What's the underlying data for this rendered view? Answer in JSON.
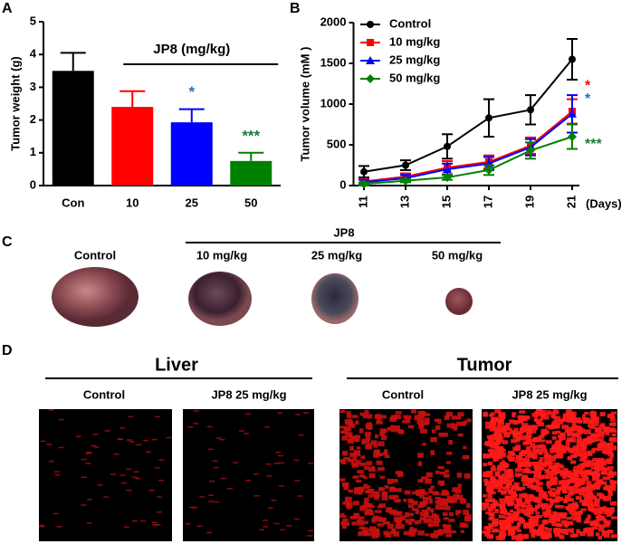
{
  "chart_data": [
    {
      "type": "bar",
      "panel": "A",
      "ylabel": "Tumor weight (g)",
      "categories": [
        "Con",
        "10",
        "25",
        "50"
      ],
      "values": [
        3.5,
        2.4,
        1.93,
        0.75
      ],
      "errors": [
        0.55,
        0.48,
        0.4,
        0.25
      ],
      "colors": [
        "#000000",
        "#ff0000",
        "#0000ff",
        "#008000"
      ],
      "ylim": [
        0,
        5
      ],
      "yticks": [
        0,
        1,
        2,
        3,
        4,
        5
      ],
      "group_label": "JP8 (mg/kg)",
      "significance": [
        {
          "category": "25",
          "label": "*",
          "color": "#2a6ebb"
        },
        {
          "category": "50",
          "label": "***",
          "color": "#1a7a3a"
        }
      ]
    },
    {
      "type": "line",
      "panel": "B",
      "ylabel": "Tumor volume (mM  )",
      "xlabel": "(Days)",
      "x": [
        11,
        13,
        15,
        17,
        19,
        21
      ],
      "xlim": [
        10.5,
        22
      ],
      "xticks": [
        11,
        13,
        15,
        17,
        19,
        21
      ],
      "ylim": [
        0,
        2000
      ],
      "yticks": [
        0,
        500,
        1000,
        1500,
        2000
      ],
      "legend": "top-left",
      "series": [
        {
          "name": "Control",
          "color": "#000000",
          "marker": "circle",
          "values": [
            170,
            250,
            480,
            830,
            930,
            1550
          ],
          "errors": [
            70,
            60,
            150,
            230,
            180,
            250
          ]
        },
        {
          "name": "10 mg/kg",
          "color": "#ff0000",
          "marker": "square",
          "values": [
            50,
            110,
            220,
            290,
            490,
            910
          ],
          "errors": [
            30,
            40,
            80,
            80,
            100,
            150
          ]
        },
        {
          "name": "25 mg/kg",
          "color": "#0000ff",
          "marker": "triangle",
          "values": [
            40,
            90,
            200,
            270,
            470,
            880
          ],
          "errors": [
            30,
            40,
            70,
            80,
            100,
            230
          ]
        },
        {
          "name": "50 mg/kg",
          "color": "#008000",
          "marker": "diamond",
          "values": [
            20,
            60,
            100,
            190,
            430,
            600
          ],
          "errors": [
            20,
            20,
            30,
            60,
            100,
            150
          ]
        }
      ],
      "significance": [
        {
          "series": "10 mg/kg",
          "label": "*",
          "color": "#ff0000"
        },
        {
          "series": "25 mg/kg",
          "label": "*",
          "color": "#2a6ebb"
        },
        {
          "series": "50 mg/kg",
          "label": "***",
          "color": "#1a7a3a"
        }
      ]
    }
  ],
  "panel_c": {
    "panel": "C",
    "control": "Control",
    "group": "JP8",
    "doses": [
      "10 mg/kg",
      "25 mg/kg",
      "50 mg/kg"
    ]
  },
  "panel_d": {
    "panel": "D",
    "groups": [
      {
        "title": "Liver",
        "conditions": [
          "Control",
          "JP8 25 mg/kg"
        ]
      },
      {
        "title": "Tumor",
        "conditions": [
          "Control",
          "JP8 25 mg/kg"
        ]
      }
    ]
  }
}
